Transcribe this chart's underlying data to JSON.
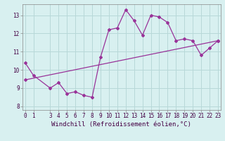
{
  "x": [
    0,
    1,
    3,
    4,
    5,
    6,
    7,
    8,
    9,
    10,
    11,
    12,
    13,
    14,
    15,
    16,
    17,
    18,
    19,
    20,
    21,
    22,
    23
  ],
  "y": [
    10.4,
    9.7,
    9.0,
    9.3,
    8.7,
    8.8,
    8.6,
    8.5,
    10.7,
    12.2,
    12.3,
    13.3,
    12.7,
    11.9,
    13.0,
    12.9,
    12.6,
    11.6,
    11.7,
    11.6,
    10.8,
    11.2,
    11.6
  ],
  "trend_x": [
    0,
    23
  ],
  "trend_y": [
    9.45,
    11.6
  ],
  "line_color": "#993399",
  "bg_color": "#d8f0f0",
  "grid_color": "#b8d8d8",
  "xlabel": "Windchill (Refroidissement éolien,°C)",
  "xticks": [
    0,
    1,
    3,
    4,
    5,
    6,
    7,
    8,
    9,
    10,
    11,
    12,
    13,
    14,
    15,
    16,
    17,
    18,
    19,
    20,
    21,
    22,
    23
  ],
  "yticks": [
    8,
    9,
    10,
    11,
    12,
    13
  ],
  "ylim": [
    7.8,
    13.6
  ],
  "xlim": [
    -0.3,
    23.3
  ],
  "xlabel_fontsize": 6.5,
  "tick_fontsize": 5.5
}
